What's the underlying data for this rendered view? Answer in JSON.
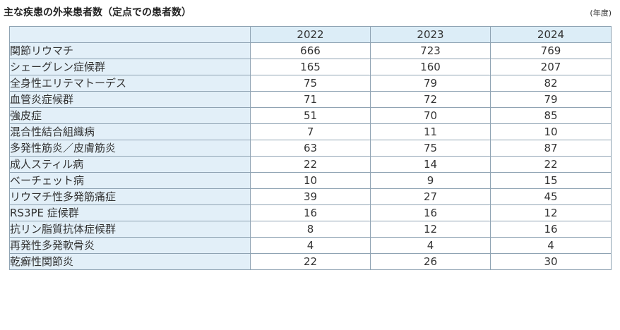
{
  "title": "主な疾患の外来患者数（定点での患者数）",
  "unit": "(年度)",
  "table": {
    "columns": [
      "2022",
      "2023",
      "2024"
    ],
    "rows": [
      {
        "name": "関節リウマチ",
        "values": [
          "666",
          "723",
          "769"
        ]
      },
      {
        "name": "シェーグレン症候群",
        "values": [
          "165",
          "160",
          "207"
        ]
      },
      {
        "name": "全身性エリテマトーデス",
        "values": [
          "75",
          "79",
          "82"
        ]
      },
      {
        "name": "血管炎症候群",
        "values": [
          "71",
          "72",
          "79"
        ]
      },
      {
        "name": "強皮症",
        "values": [
          "51",
          "70",
          "85"
        ]
      },
      {
        "name": "混合性結合組織病",
        "values": [
          "7",
          "11",
          "10"
        ]
      },
      {
        "name": "多発性筋炎／皮膚筋炎",
        "values": [
          "63",
          "75",
          "87"
        ]
      },
      {
        "name": "成人スティル病",
        "values": [
          "22",
          "14",
          "22"
        ]
      },
      {
        "name": "ベーチェット病",
        "values": [
          "10",
          "9",
          "15"
        ]
      },
      {
        "name": "リウマチ性多発筋痛症",
        "values": [
          "39",
          "27",
          "45"
        ]
      },
      {
        "name": "RS3PE 症候群",
        "values": [
          "16",
          "16",
          "12"
        ]
      },
      {
        "name": "抗リン脂質抗体症候群",
        "values": [
          "8",
          "12",
          "16"
        ]
      },
      {
        "name": "再発性多発軟骨炎",
        "values": [
          "4",
          "4",
          "4"
        ]
      },
      {
        "name": "乾癬性関節炎",
        "values": [
          "22",
          "26",
          "30"
        ]
      }
    ]
  }
}
